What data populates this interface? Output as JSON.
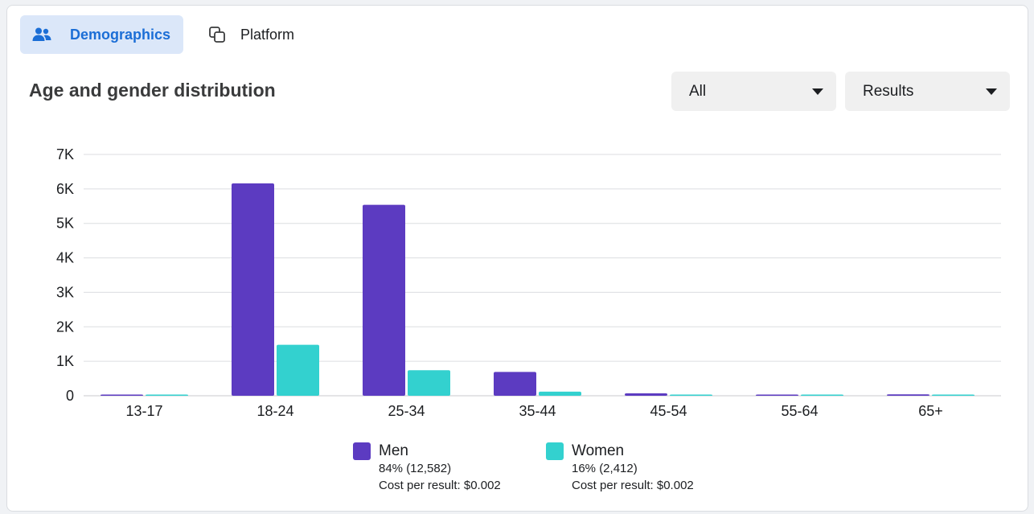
{
  "tabs": [
    {
      "label": "Demographics",
      "icon": "people-icon",
      "active": true
    },
    {
      "label": "Platform",
      "icon": "overlap-squares-icon",
      "active": false
    }
  ],
  "section_title": "Age and gender distribution",
  "filters": {
    "audience_select": "All",
    "metric_select": "Results"
  },
  "colors": {
    "men": "#5c3bc1",
    "women": "#33d1cf",
    "accent": "#1b6ed6",
    "grid": "#dcdde0"
  },
  "legend": [
    {
      "name": "Men",
      "share": "84% (12,582)",
      "cost": "Cost per result: $0.002"
    },
    {
      "name": "Women",
      "share": "16% (2,412)",
      "cost": "Cost per result: $0.002"
    }
  ],
  "chart_data": {
    "type": "bar",
    "categories": [
      "13-17",
      "18-24",
      "25-34",
      "35-44",
      "45-54",
      "55-64",
      "65+"
    ],
    "series": [
      {
        "name": "Men",
        "values": [
          20,
          6160,
          5540,
          690,
          70,
          20,
          40
        ]
      },
      {
        "name": "Women",
        "values": [
          20,
          1480,
          740,
          120,
          20,
          20,
          20
        ]
      }
    ],
    "yticks": [
      "0",
      "1K",
      "2K",
      "3K",
      "4K",
      "5K",
      "6K",
      "7K"
    ],
    "ylim": [
      0,
      7000
    ],
    "grid": true,
    "legend_position": "bottom"
  }
}
